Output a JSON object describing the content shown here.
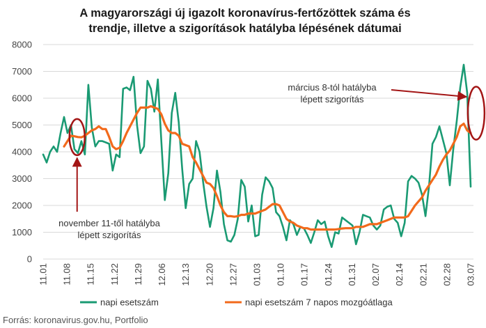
{
  "chart_data": {
    "type": "line",
    "title_lines": [
      "A magyarországi új igazolt koronavírus-fertőzöttek száma és",
      "trendje, illetve a szigorítások hatályba lépésének dátumai"
    ],
    "ylim": [
      0,
      8000
    ],
    "y_ticks": [
      "0",
      "1000",
      "2000",
      "3000",
      "4000",
      "5000",
      "6000",
      "7000",
      "8000"
    ],
    "x_tick_labels": [
      "11.01",
      "11.08",
      "11.15",
      "11.22",
      "11.29",
      "12.06",
      "12.13",
      "12.20",
      "12.27",
      "01.03",
      "01.10",
      "01.17",
      "01.24",
      "01.31",
      "02.07",
      "02.14",
      "02.21",
      "02.28",
      "03.07"
    ],
    "x_tick_days": [
      0,
      7,
      14,
      21,
      28,
      35,
      42,
      49,
      56,
      63,
      70,
      77,
      84,
      91,
      98,
      105,
      112,
      119,
      126
    ],
    "series": [
      {
        "name": "napi esetszám",
        "color": "#1a9a73",
        "values": [
          3900,
          3600,
          4000,
          4200,
          4000,
          4700,
          5300,
          4700,
          5000,
          4100,
          3950,
          4400,
          3900,
          6500,
          4900,
          4200,
          4400,
          4400,
          4350,
          4300,
          3300,
          3900,
          3800,
          6350,
          6400,
          6300,
          6800,
          5000,
          3950,
          4200,
          6650,
          6350,
          5500,
          6700,
          4400,
          2200,
          3200,
          5450,
          6200,
          5100,
          3350,
          1900,
          2800,
          3000,
          4400,
          4000,
          2900,
          1950,
          1200,
          1900,
          3300,
          2500,
          1300,
          700,
          650,
          900,
          1500,
          2950,
          2700,
          1400,
          2000,
          850,
          900,
          2400,
          3050,
          2900,
          2650,
          1750,
          1600,
          1200,
          700,
          1450,
          1300,
          900,
          1200,
          1150,
          900,
          600,
          1000,
          1450,
          1300,
          1400,
          850,
          450,
          1000,
          950,
          1550,
          1450,
          1350,
          1250,
          550,
          1000,
          1650,
          1600,
          1550,
          1250,
          1100,
          1250,
          1850,
          1950,
          2000,
          1500,
          1350,
          850,
          1350,
          2900,
          3100,
          3000,
          2850,
          2400,
          1600,
          2700,
          4300,
          4550,
          4950,
          4450,
          3950,
          2750,
          4100,
          5150,
          6400,
          7250,
          6200,
          2700
        ]
      },
      {
        "name": "napi esetszám 7 napos mozgóátlaga",
        "color": "#f26a1b",
        "values": [
          null,
          null,
          null,
          null,
          null,
          null,
          4200,
          4400,
          4600,
          4580,
          4550,
          4540,
          4600,
          4700,
          4800,
          4850,
          4950,
          4850,
          4850,
          4550,
          4200,
          4100,
          4150,
          4400,
          4700,
          4950,
          5200,
          5450,
          5650,
          5650,
          5650,
          5700,
          5650,
          5600,
          5400,
          5050,
          4800,
          4700,
          4700,
          4600,
          4300,
          4250,
          4200,
          3800,
          3600,
          3350,
          3100,
          2850,
          2800,
          2650,
          2350,
          2000,
          1750,
          1600,
          1600,
          1580,
          1600,
          1650,
          1650,
          1700,
          1700,
          1700,
          1750,
          1800,
          1850,
          1950,
          2050,
          2050,
          2000,
          1750,
          1500,
          1400,
          1350,
          1250,
          1200,
          1150,
          1150,
          1100,
          1100,
          1100,
          1100,
          1100,
          1100,
          1100,
          1100,
          1120,
          1140,
          1150,
          1150,
          1150,
          1200,
          1200,
          1200,
          1250,
          1300,
          1300,
          1300,
          1350,
          1400,
          1450,
          1500,
          1550,
          1550,
          1550,
          1550,
          1600,
          1800,
          2000,
          2150,
          2300,
          2550,
          2750,
          2950,
          3150,
          3450,
          3700,
          3900,
          4050,
          4300,
          4550,
          4950,
          5050,
          4800,
          4700
        ]
      }
    ],
    "annotations": [
      {
        "lines": [
          "november 11-től hatályba",
          "lépett szigorítás"
        ],
        "target_day": 10,
        "target_value": 4550
      },
      {
        "lines": [
          "március 8-tól hatályba",
          "lépett szigorítás"
        ],
        "target_day": 127,
        "target_value": 5700
      }
    ],
    "annotation_color": "#a31515",
    "grid": true,
    "legend_position": "bottom",
    "source": "Forrás: koronavirus.gov.hu, Portfolio"
  }
}
